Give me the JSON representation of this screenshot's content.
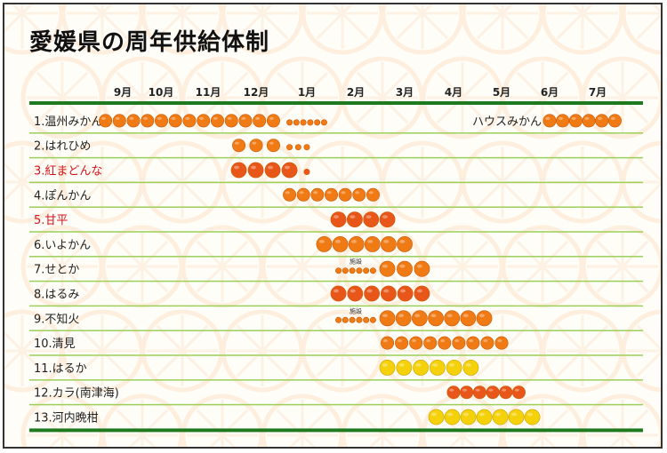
{
  "title": "愛媛県の周年供給体制",
  "colors": {
    "rule_dark": "#1f7a1f",
    "rule_light": "#9ccf58",
    "orange": "#f07a14",
    "red_orange": "#e8561a",
    "yellow": "#f5d10a",
    "label_red": "#d4141a"
  },
  "chart_data": {
    "type": "timeline",
    "months": [
      "9月",
      "10月",
      "11月",
      "12月",
      "1月",
      "2月",
      "3月",
      "4月",
      "5月",
      "6月",
      "7月"
    ],
    "rows": [
      {
        "name": "1.温州みかん",
        "highlight": false,
        "segments": [
          {
            "from": "9月上",
            "to": "12月下",
            "size": "large",
            "color": "orange"
          },
          {
            "from": "1月上",
            "to": "1月下",
            "size": "small",
            "color": "orange"
          },
          {
            "from": "6月中",
            "to": "7月下",
            "size": "large",
            "color": "orange"
          }
        ],
        "annotation": {
          "text": "ハウスみかん",
          "at": "5月"
        }
      },
      {
        "name": "2.はれひめ",
        "highlight": false,
        "segments": [
          {
            "from": "12月上",
            "to": "12月下",
            "size": "large",
            "color": "orange"
          },
          {
            "from": "1月上",
            "to": "1月中",
            "size": "small",
            "color": "orange"
          }
        ]
      },
      {
        "name": "3.紅まどんな",
        "highlight": true,
        "segments": [
          {
            "from": "12月上",
            "to": "1月上",
            "size": "xlarge",
            "color": "red_orange"
          },
          {
            "from": "1月中",
            "to": "1月中",
            "size": "small",
            "color": "red_orange"
          }
        ]
      },
      {
        "name": "4.ぽんかん",
        "highlight": false,
        "segments": [
          {
            "from": "1月上",
            "to": "2月下",
            "size": "large",
            "color": "orange"
          }
        ]
      },
      {
        "name": "5.甘平",
        "highlight": true,
        "segments": [
          {
            "from": "2月上",
            "to": "3月上",
            "size": "xlarge",
            "color": "red_orange"
          }
        ]
      },
      {
        "name": "6.いよかん",
        "highlight": false,
        "segments": [
          {
            "from": "1月下",
            "to": "3月中",
            "size": "xlarge",
            "color": "orange"
          }
        ]
      },
      {
        "name": "7.せとか",
        "highlight": false,
        "segments": [
          {
            "from": "2月上",
            "to": "2月下",
            "size": "small",
            "color": "orange",
            "label": "施設"
          },
          {
            "from": "3月上",
            "to": "3月下",
            "size": "xlarge",
            "color": "orange"
          }
        ]
      },
      {
        "name": "8.はるみ",
        "highlight": false,
        "segments": [
          {
            "from": "2月上",
            "to": "3月下",
            "size": "xlarge",
            "color": "red_orange"
          }
        ]
      },
      {
        "name": "9.不知火",
        "highlight": false,
        "segments": [
          {
            "from": "2月上",
            "to": "2月下",
            "size": "small",
            "color": "orange",
            "label": "施設"
          },
          {
            "from": "3月上",
            "to": "5月上",
            "size": "xlarge",
            "color": "orange"
          }
        ]
      },
      {
        "name": "10.清見",
        "highlight": false,
        "segments": [
          {
            "from": "3月上",
            "to": "5月中",
            "size": "large",
            "color": "orange"
          }
        ]
      },
      {
        "name": "11.はるか",
        "highlight": false,
        "segments": [
          {
            "from": "3月上",
            "to": "4月下",
            "size": "xlarge",
            "color": "yellow"
          }
        ]
      },
      {
        "name": "12.カラ(南津海)",
        "highlight": false,
        "segments": [
          {
            "from": "4月中",
            "to": "5月下",
            "size": "large",
            "color": "red_orange"
          }
        ]
      },
      {
        "name": "13.河内晩柑",
        "highlight": false,
        "segments": [
          {
            "from": "4月上",
            "to": "6月上",
            "size": "xlarge",
            "color": "yellow"
          }
        ]
      }
    ]
  }
}
